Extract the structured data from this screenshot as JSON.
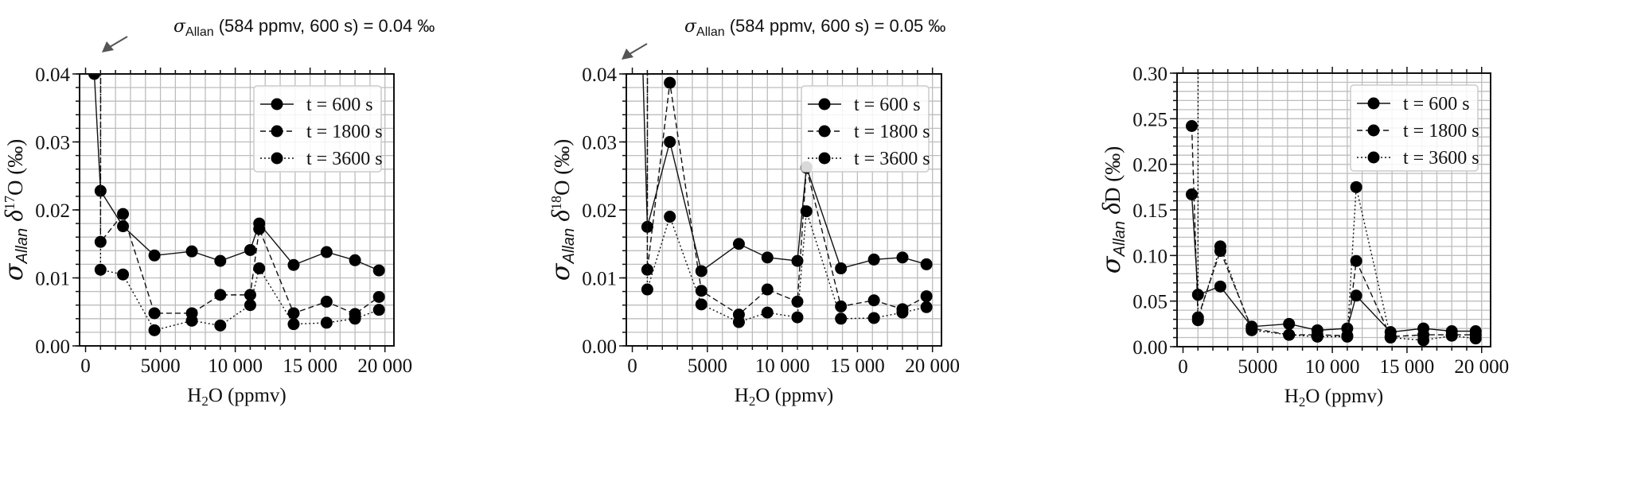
{
  "chart_data": [
    {
      "type": "line",
      "x": [
        584,
        1000,
        2500,
        4600,
        7100,
        9000,
        11000,
        11600,
        13900,
        16100,
        18000,
        19600
      ],
      "xlabel": {
        "main": "H",
        "sub": "2",
        "rest": "O (ppmv)"
      },
      "ylabel": {
        "sigma": "σ",
        "sub": "Allan",
        "delta": " δ",
        "sup": "17",
        "rest": "O (‰)"
      },
      "xlim": [
        -400,
        20600
      ],
      "ylim": [
        0,
        0.04
      ],
      "xticks": [
        "0",
        "5000",
        "10 000",
        "15 000",
        "20 000"
      ],
      "yticks": [
        "0.00",
        "0.01",
        "0.02",
        "0.03",
        "0.04"
      ],
      "grid": true,
      "legend_position": "top-right",
      "annotation": {
        "sigma": "σ",
        "sub": "Allan",
        "text": " (584 ppmv, 600 s) = 0.04 ‰"
      },
      "series": [
        {
          "name": "t = 600 s",
          "style": "solid",
          "values": [
            0.04,
            0.0228,
            0.0176,
            0.0133,
            0.0139,
            0.0125,
            0.0141,
            0.018,
            0.0119,
            0.0138,
            0.0126,
            0.0111
          ]
        },
        {
          "name": "t = 1800 s",
          "style": "dashed",
          "values": [
            null,
            0.0153,
            0.0194,
            0.0048,
            0.0048,
            0.0075,
            0.0075,
            0.0172,
            0.0048,
            0.0065,
            0.0047,
            0.0072
          ]
        },
        {
          "name": "t = 3600 s",
          "style": "dotted",
          "values": [
            null,
            0.0112,
            0.0105,
            0.0023,
            0.0037,
            0.003,
            0.006,
            0.0114,
            0.0032,
            0.0034,
            0.004,
            0.0053
          ]
        }
      ]
    },
    {
      "type": "line",
      "x": [
        584,
        1000,
        2500,
        4600,
        7100,
        9000,
        11000,
        11600,
        13900,
        16100,
        18000,
        19600
      ],
      "xlabel": {
        "main": "H",
        "sub": "2",
        "rest": "O (ppmv)"
      },
      "ylabel": {
        "sigma": "σ",
        "sub": "Allan",
        "delta": " δ",
        "sup": "18",
        "rest": "O (‰)"
      },
      "xlim": [
        -400,
        20600
      ],
      "ylim": [
        0,
        0.04
      ],
      "xticks": [
        "0",
        "5000",
        "10 000",
        "15 000",
        "20 000"
      ],
      "yticks": [
        "0.00",
        "0.01",
        "0.02",
        "0.03",
        "0.04"
      ],
      "grid": true,
      "legend_position": "top-right",
      "annotation": {
        "sigma": "σ",
        "sub": "Allan",
        "text": " (584 ppmv, 600 s) = 0.05 ‰"
      },
      "series": [
        {
          "name": "t = 600 s",
          "style": "solid",
          "values": [
            0.05,
            0.0175,
            0.03,
            0.011,
            0.015,
            0.013,
            0.0125,
            0.0263,
            0.0114,
            0.0127,
            0.013,
            0.012
          ]
        },
        {
          "name": "t = 1800 s",
          "style": "dashed",
          "values": [
            null,
            0.0112,
            0.0387,
            0.0081,
            0.0046,
            0.0083,
            0.0065,
            0.0262,
            0.0058,
            0.0067,
            0.0054,
            0.0073
          ]
        },
        {
          "name": "t = 3600 s",
          "style": "dotted",
          "values": [
            null,
            0.0083,
            0.019,
            0.0061,
            0.0035,
            0.0049,
            0.0042,
            0.0198,
            0.004,
            0.0041,
            0.0049,
            0.0057
          ]
        }
      ]
    },
    {
      "type": "line",
      "x": [
        584,
        1000,
        2500,
        4600,
        7100,
        9000,
        11000,
        11600,
        13900,
        16100,
        18000,
        19600
      ],
      "xlabel": {
        "main": "H",
        "sub": "2",
        "rest": "O (ppmv)"
      },
      "ylabel": {
        "sigma": "σ",
        "sub": "Allan",
        "delta": " δ",
        "sup": "",
        "rest": "D (‰)"
      },
      "xlim": [
        -400,
        20600
      ],
      "ylim": [
        0,
        0.3
      ],
      "xticks": [
        "0",
        "5000",
        "10 000",
        "15 000",
        "20 000"
      ],
      "yticks": [
        "0.00",
        "0.05",
        "0.10",
        "0.15",
        "0.20",
        "0.25",
        "0.30"
      ],
      "grid": true,
      "legend_position": "top-right",
      "series": [
        {
          "name": "t = 600 s",
          "style": "solid",
          "values": [
            0.167,
            0.057,
            0.066,
            0.022,
            0.025,
            0.018,
            0.02,
            0.056,
            0.016,
            0.02,
            0.017,
            0.017
          ]
        },
        {
          "name": "t = 1800 s",
          "style": "dashed",
          "values": [
            0.242,
            0.032,
            0.105,
            0.02,
            0.013,
            0.013,
            0.012,
            0.094,
            0.011,
            0.013,
            0.013,
            0.013
          ]
        },
        {
          "name": "t = 3600 s",
          "style": "dotted",
          "values": [
            null,
            0.029,
            0.11,
            0.018,
            0.013,
            0.011,
            0.011,
            0.175,
            0.01,
            0.007,
            0.012,
            0.009
          ]
        }
      ]
    }
  ]
}
